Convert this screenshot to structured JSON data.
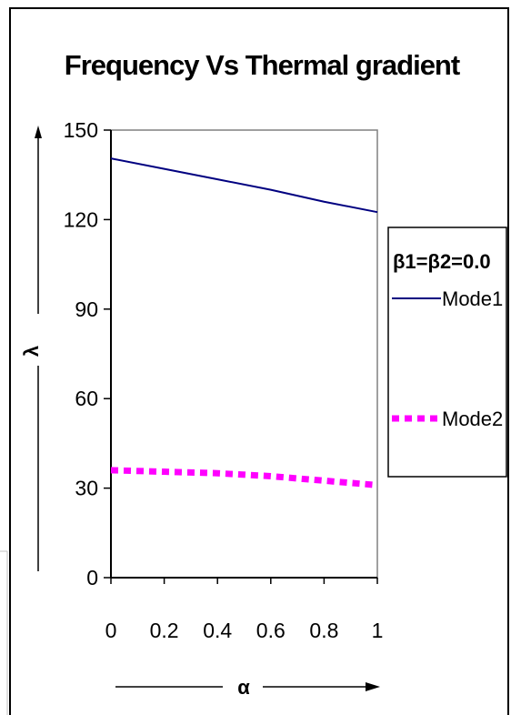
{
  "chart_data": {
    "type": "line",
    "title": "Frequency Vs Thermal gradient",
    "xlabel": "α",
    "ylabel": "λ",
    "x": [
      0,
      0.2,
      0.4,
      0.6,
      0.8,
      1
    ],
    "xticks": [
      "0",
      "0.2",
      "0.4",
      "0.6",
      "0.8",
      "1"
    ],
    "yticks": [
      "0",
      "30",
      "60",
      "90",
      "120",
      "150"
    ],
    "xlim": [
      0,
      1
    ],
    "ylim": [
      0,
      150
    ],
    "grid": false,
    "legend_title": "β1=β2=0.0",
    "legend_position": "right",
    "series": [
      {
        "name": "Mode1",
        "values": [
          140.5,
          137,
          133.5,
          130,
          126,
          122.5
        ],
        "color": "#000080",
        "style": "solid"
      },
      {
        "name": "Mode2",
        "values": [
          36,
          35.5,
          35,
          34,
          32.5,
          31
        ],
        "color": "#ff00ff",
        "style": "dotted"
      }
    ]
  }
}
